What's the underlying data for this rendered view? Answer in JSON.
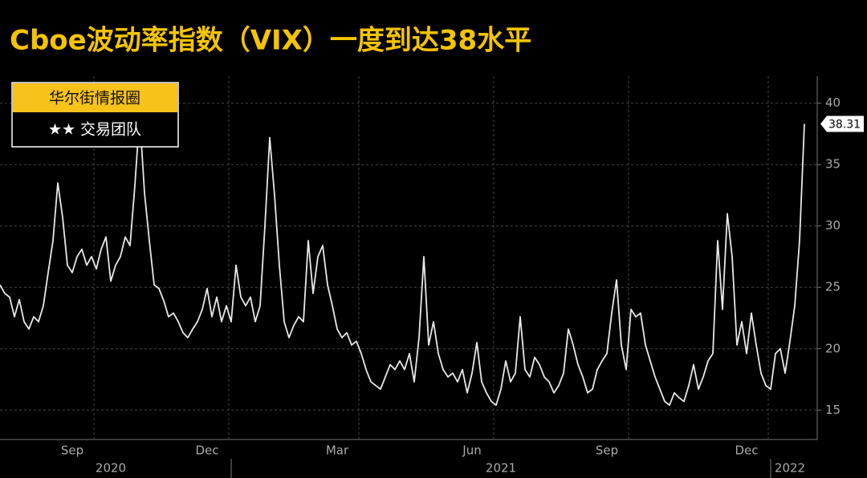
{
  "chart_data": {
    "type": "line",
    "title": "Cboe波动率指数（VIX）一度到达38水平",
    "badge_title": "华尔街情报圈",
    "badge_subtitle": "★★ 交易团队",
    "categories": [
      null,
      null,
      null,
      null,
      null,
      null,
      null,
      null,
      null,
      null,
      null,
      null,
      null,
      null,
      null,
      "Sep",
      null,
      null,
      null,
      null,
      null,
      null,
      null,
      null,
      null,
      null,
      null,
      null,
      null,
      null,
      null,
      null,
      null,
      null,
      null,
      null,
      null,
      null,
      null,
      null,
      null,
      null,
      null,
      "Dec",
      null,
      null,
      null,
      null,
      null,
      null,
      null,
      null,
      null,
      null,
      null,
      null,
      null,
      null,
      null,
      null,
      null,
      null,
      null,
      null,
      null,
      null,
      null,
      null,
      null,
      null,
      "Mar",
      null,
      null,
      null,
      null,
      null,
      null,
      null,
      null,
      null,
      null,
      null,
      null,
      null,
      null,
      null,
      null,
      null,
      null,
      null,
      null,
      null,
      null,
      null,
      null,
      null,
      null,
      null,
      "Jun",
      null,
      null,
      null,
      null,
      null,
      null,
      null,
      null,
      null,
      null,
      null,
      null,
      null,
      null,
      null,
      null,
      null,
      null,
      null,
      null,
      null,
      null,
      null,
      null,
      null,
      null,
      null,
      "Sep",
      null,
      null,
      null,
      null,
      null,
      null,
      null,
      null,
      null,
      null,
      null,
      null,
      null,
      null,
      null,
      null,
      null,
      null,
      null,
      null,
      null,
      null,
      null,
      null,
      null,
      null,
      null,
      null,
      "Dec",
      null,
      null,
      null,
      null,
      null,
      null,
      null,
      null,
      null,
      null,
      null,
      null
    ],
    "year_labels": [
      null,
      null,
      null,
      null,
      null,
      null,
      null,
      null,
      null,
      null,
      null,
      null,
      null,
      null,
      null,
      null,
      null,
      null,
      null,
      null,
      null,
      null,
      null,
      "2020",
      null,
      null,
      null,
      null,
      null,
      null,
      null,
      null,
      null,
      null,
      null,
      null,
      null,
      null,
      null,
      null,
      null,
      null,
      null,
      null,
      null,
      null,
      null,
      null,
      null,
      null,
      null,
      null,
      null,
      null,
      null,
      null,
      null,
      null,
      null,
      null,
      null,
      null,
      null,
      null,
      null,
      null,
      null,
      null,
      null,
      null,
      null,
      null,
      null,
      null,
      null,
      null,
      null,
      null,
      null,
      null,
      null,
      null,
      null,
      null,
      null,
      null,
      null,
      null,
      null,
      null,
      null,
      null,
      null,
      null,
      null,
      null,
      null,
      null,
      null,
      null,
      null,
      null,
      null,
      null,
      "2021",
      null,
      null,
      null,
      null,
      null,
      null,
      null,
      null,
      null,
      null,
      null,
      null,
      null,
      null,
      null,
      null,
      null,
      null,
      null,
      null,
      null,
      null,
      null,
      null,
      null,
      null,
      null,
      null,
      null,
      null,
      null,
      null,
      null,
      null,
      null,
      null,
      null,
      null,
      null,
      null,
      null,
      null,
      null,
      null,
      null,
      null,
      null,
      null,
      null,
      null,
      null,
      null,
      null,
      null,
      null,
      null,
      null,
      null,
      null,
      "2022",
      null,
      null,
      null
    ],
    "series": [
      {
        "name": "VIX",
        "color": "#e8e8e8",
        "values": [
          25.2,
          24.5,
          24.2,
          22.6,
          24.0,
          22.2,
          21.6,
          22.6,
          22.2,
          23.5,
          26.2,
          28.8,
          33.5,
          30.7,
          26.8,
          26.2,
          27.5,
          28.1,
          26.8,
          27.5,
          26.5,
          28.1,
          29.1,
          25.5,
          26.8,
          27.5,
          29.1,
          28.4,
          33.3,
          39.0,
          32.7,
          28.8,
          25.2,
          24.9,
          23.9,
          22.6,
          22.9,
          22.2,
          21.3,
          20.9,
          21.6,
          22.2,
          23.2,
          24.9,
          22.6,
          24.2,
          22.2,
          23.5,
          22.2,
          26.8,
          24.2,
          23.5,
          24.2,
          22.2,
          23.5,
          30.0,
          37.2,
          32.5,
          26.8,
          22.2,
          20.9,
          21.9,
          22.6,
          22.2,
          28.8,
          24.5,
          27.5,
          28.4,
          25.2,
          23.5,
          21.6,
          20.9,
          21.3,
          20.3,
          20.6,
          19.6,
          18.3,
          17.3,
          17.0,
          16.7,
          17.7,
          18.7,
          18.3,
          19.0,
          18.3,
          19.6,
          17.3,
          20.9,
          27.5,
          20.3,
          22.2,
          19.6,
          18.3,
          17.7,
          18.0,
          17.3,
          18.3,
          16.4,
          18.0,
          20.5,
          17.3,
          16.4,
          15.7,
          15.4,
          16.7,
          19.0,
          17.3,
          18.0,
          22.6,
          18.3,
          17.7,
          19.3,
          18.7,
          17.7,
          17.3,
          16.4,
          17.0,
          18.0,
          21.6,
          20.3,
          18.7,
          17.7,
          16.4,
          16.7,
          18.3,
          19.0,
          19.6,
          22.9,
          25.6,
          20.3,
          18.3,
          23.2,
          22.6,
          22.9,
          20.3,
          19.0,
          17.7,
          16.7,
          15.7,
          15.4,
          16.4,
          16.0,
          15.7,
          17.0,
          18.7,
          16.7,
          17.7,
          19.0,
          19.6,
          28.8,
          23.2,
          31.0,
          27.5,
          20.3,
          22.2,
          19.6,
          22.9,
          20.3,
          18.0,
          17.0,
          16.7,
          19.6,
          20.0,
          18.0,
          20.6,
          23.5,
          28.8,
          38.31
        ]
      }
    ],
    "ylim": [
      12.6,
      42.2
    ],
    "yticks": [
      15,
      20,
      25,
      30,
      35,
      40
    ],
    "grid": true
  }
}
